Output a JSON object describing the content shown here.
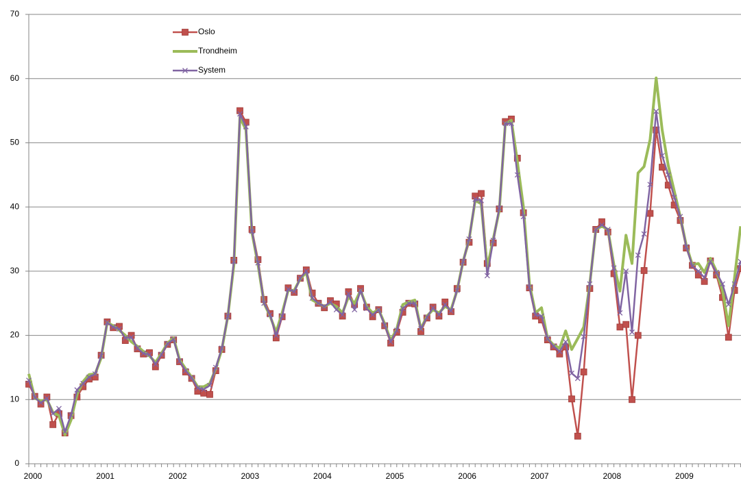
{
  "chart_data": {
    "type": "line",
    "categories": [
      "2000",
      null,
      null,
      null,
      null,
      null,
      null,
      null,
      null,
      null,
      null,
      null,
      "2001",
      null,
      null,
      null,
      null,
      null,
      null,
      null,
      null,
      null,
      null,
      null,
      "2002",
      null,
      null,
      null,
      null,
      null,
      null,
      null,
      null,
      null,
      null,
      null,
      "2003",
      null,
      null,
      null,
      null,
      null,
      null,
      null,
      null,
      null,
      null,
      null,
      "2004",
      null,
      null,
      null,
      null,
      null,
      null,
      null,
      null,
      null,
      null,
      null,
      "2005",
      null,
      null,
      null,
      null,
      null,
      null,
      null,
      null,
      null,
      null,
      null,
      "2006",
      null,
      null,
      null,
      null,
      null,
      null,
      null,
      null,
      null,
      null,
      null,
      "2007",
      null,
      null,
      null,
      null,
      null,
      null,
      null,
      null,
      null,
      null,
      null,
      "2008",
      null,
      null,
      null,
      null,
      null,
      null,
      null,
      null,
      null,
      null,
      null,
      "2009",
      null,
      null,
      null,
      null,
      null,
      null,
      null,
      null,
      null,
      null
    ],
    "series": [
      {
        "name": "Oslo",
        "color": "#c0504d",
        "marker": "square",
        "values": [
          12.4,
          10.5,
          9.3,
          10.4,
          6.1,
          7.8,
          4.8,
          7.5,
          10.4,
          12.0,
          13.2,
          13.5,
          16.9,
          22.1,
          21.2,
          21.4,
          19.2,
          20.0,
          17.9,
          17.1,
          17.3,
          15.1,
          16.9,
          18.6,
          19.3,
          15.9,
          14.3,
          13.3,
          11.3,
          11.0,
          10.8,
          14.5,
          17.8,
          23.0,
          31.7,
          55.0,
          53.2,
          36.5,
          31.8,
          25.6,
          23.4,
          19.6,
          22.9,
          27.4,
          26.7,
          28.9,
          30.2,
          26.6,
          25.0,
          24.3,
          25.4,
          24.9,
          23.0,
          26.8,
          24.8,
          27.3,
          24.4,
          22.9,
          24.0,
          21.5,
          18.8,
          20.5,
          23.6,
          25.0,
          24.9,
          20.6,
          22.7,
          24.4,
          23.0,
          25.2,
          23.7,
          27.3,
          31.4,
          34.5,
          41.7,
          42.1,
          31.2,
          34.4,
          39.7,
          53.3,
          53.7,
          47.6,
          39.1,
          27.4,
          23.0,
          22.4,
          19.3,
          18.2,
          17.1,
          18.2,
          10.1,
          4.3,
          14.3,
          27.3,
          36.5,
          37.7,
          36.1,
          29.6,
          21.3,
          21.7,
          10.0,
          20.0,
          30.1,
          39.0,
          52.0,
          46.2,
          43.4,
          40.3,
          37.9,
          33.6,
          30.9,
          29.4,
          28.4,
          31.6,
          29.4,
          25.9,
          19.7,
          27.0,
          30.4
        ]
      },
      {
        "name": "Trondheim",
        "color": "#9bbb59",
        "marker": null,
        "values": [
          14.0,
          10.2,
          9.8,
          10.0,
          8.0,
          7.5,
          4.5,
          6.8,
          10.8,
          12.8,
          13.9,
          14.0,
          16.5,
          22.0,
          21.5,
          20.8,
          20.0,
          19.0,
          18.3,
          17.5,
          16.8,
          15.8,
          17.2,
          18.8,
          19.6,
          16.2,
          14.8,
          13.5,
          12.0,
          12.0,
          12.5,
          14.8,
          17.8,
          23.0,
          31.0,
          54.0,
          52.0,
          36.0,
          31.0,
          25.0,
          23.0,
          20.5,
          23.5,
          27.0,
          27.0,
          28.8,
          29.8,
          25.5,
          25.0,
          24.5,
          25.0,
          24.5,
          23.5,
          26.0,
          25.0,
          27.0,
          24.5,
          23.5,
          24.0,
          21.8,
          19.2,
          21.0,
          24.8,
          25.2,
          25.5,
          21.0,
          23.0,
          24.0,
          23.5,
          24.5,
          24.0,
          27.0,
          31.5,
          35.0,
          41.0,
          40.5,
          30.5,
          35.0,
          39.5,
          53.0,
          53.5,
          47.0,
          40.0,
          28.0,
          23.5,
          24.3,
          19.5,
          18.5,
          18.0,
          20.7,
          17.8,
          19.5,
          21.3,
          28.0,
          36.5,
          37.0,
          36.5,
          31.0,
          26.9,
          35.6,
          31.2,
          45.3,
          46.3,
          50.5,
          60.1,
          52.0,
          46.5,
          42.5,
          38.5,
          34.0,
          31.0,
          31.2,
          29.8,
          32.0,
          30.0,
          27.0,
          21.5,
          29.0,
          37.0
        ]
      },
      {
        "name": "System",
        "color": "#8064a2",
        "marker": "x",
        "values": [
          13.0,
          10.3,
          9.5,
          10.2,
          7.8,
          8.6,
          5.0,
          7.6,
          11.5,
          12.5,
          13.5,
          14.0,
          16.8,
          22.0,
          21.3,
          21.0,
          19.6,
          19.7,
          18.0,
          17.2,
          17.0,
          15.5,
          17.0,
          18.7,
          19.4,
          16.0,
          14.5,
          13.4,
          11.8,
          11.6,
          12.2,
          15.0,
          18.0,
          23.0,
          31.5,
          54.5,
          52.5,
          36.2,
          31.3,
          25.0,
          23.2,
          20.0,
          23.0,
          27.2,
          26.8,
          28.9,
          30.0,
          25.8,
          25.0,
          24.5,
          25.2,
          24.0,
          23.2,
          26.5,
          24.0,
          27.0,
          24.2,
          23.2,
          24.0,
          21.6,
          19.0,
          20.8,
          24.2,
          25.0,
          25.0,
          21.0,
          22.8,
          24.3,
          23.2,
          24.8,
          23.8,
          27.0,
          31.5,
          35.0,
          41.2,
          41.0,
          29.3,
          34.8,
          39.8,
          53.0,
          53.0,
          45.0,
          38.5,
          27.5,
          23.2,
          23.0,
          19.5,
          18.3,
          17.5,
          19.0,
          14.1,
          13.3,
          19.8,
          28.0,
          36.5,
          37.2,
          36.5,
          30.5,
          23.5,
          30.0,
          20.5,
          32.5,
          35.8,
          43.5,
          54.9,
          48.0,
          45.0,
          41.5,
          38.5,
          33.8,
          30.8,
          30.0,
          29.0,
          31.5,
          29.8,
          28.0,
          24.8,
          28.0,
          31.5
        ]
      }
    ],
    "ylim": [
      0,
      70
    ],
    "yticks": [
      0,
      10,
      20,
      30,
      40,
      50,
      60,
      70
    ],
    "grid": true,
    "legend": "top-left"
  }
}
